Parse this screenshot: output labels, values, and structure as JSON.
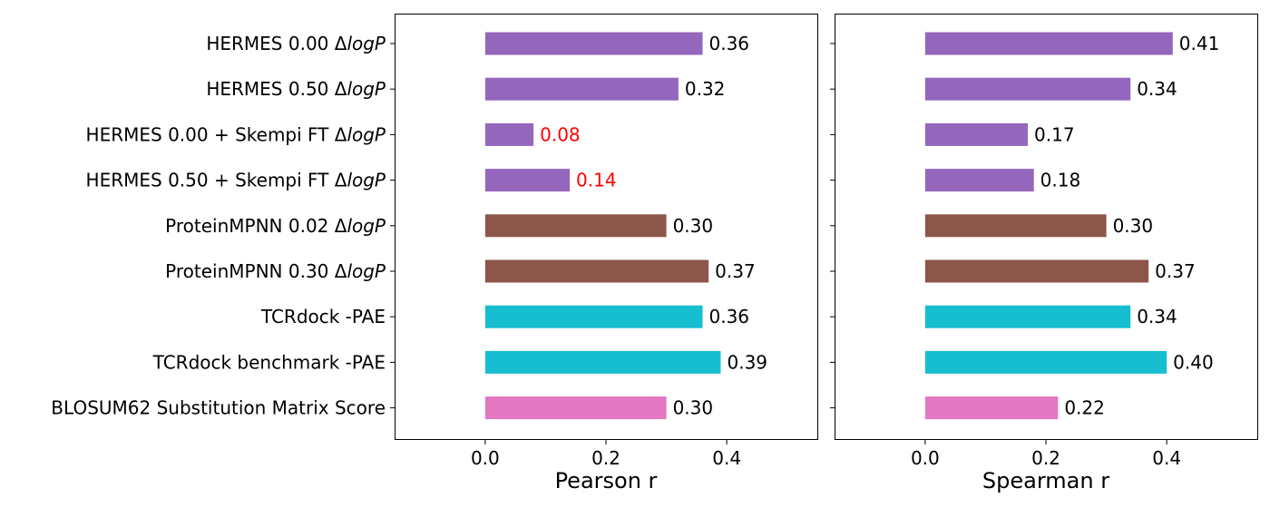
{
  "chart_data": [
    {
      "type": "bar",
      "orientation": "horizontal",
      "xlabel": "Pearson r",
      "xlim": [
        -0.15,
        0.55
      ],
      "xticks": [
        "0.0",
        "0.2",
        "0.4"
      ],
      "grid": false,
      "categories": [
        {
          "prefix": "HERMES 0.00 Δ",
          "italic": "logP"
        },
        {
          "prefix": "HERMES 0.50 Δ",
          "italic": "logP"
        },
        {
          "prefix": "HERMES 0.00 + Skempi FT Δ",
          "italic": "logP"
        },
        {
          "prefix": "HERMES 0.50 + Skempi FT Δ",
          "italic": "logP"
        },
        {
          "prefix": "ProteinMPNN 0.02 Δ",
          "italic": "logP"
        },
        {
          "prefix": "ProteinMPNN 0.30 Δ",
          "italic": "logP"
        },
        {
          "prefix": "TCRdock -PAE",
          "italic": ""
        },
        {
          "prefix": "TCRdock benchmark -PAE",
          "italic": ""
        },
        {
          "prefix": "BLOSUM62 Substitution Matrix Score",
          "italic": ""
        }
      ],
      "values": [
        0.36,
        0.32,
        0.08,
        0.14,
        0.3,
        0.37,
        0.36,
        0.39,
        0.3
      ],
      "labels": [
        "0.36",
        "0.32",
        "0.08",
        "0.14",
        "0.30",
        "0.37",
        "0.36",
        "0.39",
        "0.30"
      ],
      "bar_colors": [
        "#9467bd",
        "#9467bd",
        "#9467bd",
        "#9467bd",
        "#8c564b",
        "#8c564b",
        "#17becf",
        "#17becf",
        "#e377c2"
      ],
      "label_colors": [
        "#000000",
        "#000000",
        "#ff0000",
        "#ff0000",
        "#000000",
        "#000000",
        "#000000",
        "#000000",
        "#000000"
      ]
    },
    {
      "type": "bar",
      "orientation": "horizontal",
      "xlabel": "Spearman r",
      "xlim": [
        -0.15,
        0.55
      ],
      "xticks": [
        "0.0",
        "0.2",
        "0.4"
      ],
      "grid": false,
      "categories_shared_with_left": true,
      "values": [
        0.41,
        0.34,
        0.17,
        0.18,
        0.3,
        0.37,
        0.34,
        0.4,
        0.22
      ],
      "labels": [
        "0.41",
        "0.34",
        "0.17",
        "0.18",
        "0.30",
        "0.37",
        "0.34",
        "0.40",
        "0.22"
      ],
      "bar_colors": [
        "#9467bd",
        "#9467bd",
        "#9467bd",
        "#9467bd",
        "#8c564b",
        "#8c564b",
        "#17becf",
        "#17becf",
        "#e377c2"
      ],
      "label_colors": [
        "#000000",
        "#000000",
        "#000000",
        "#000000",
        "#000000",
        "#000000",
        "#000000",
        "#000000",
        "#000000"
      ]
    }
  ]
}
